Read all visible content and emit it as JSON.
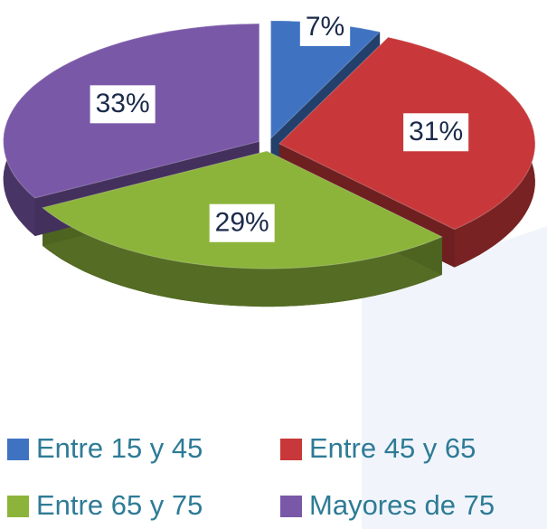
{
  "chart_data": {
    "type": "pie",
    "three_d": true,
    "exploded": true,
    "categories": [
      "Entre 15 y 45",
      "Entre 45 y 65",
      "Entre 65 y 75",
      "Mayores de 75"
    ],
    "values": [
      7,
      31,
      29,
      33
    ],
    "value_labels": [
      "7%",
      "31%",
      "29%",
      "33%"
    ],
    "colors": [
      "#3f73c2",
      "#c8383a",
      "#8cb43a",
      "#7a58a8"
    ],
    "legend": "bottom"
  }
}
